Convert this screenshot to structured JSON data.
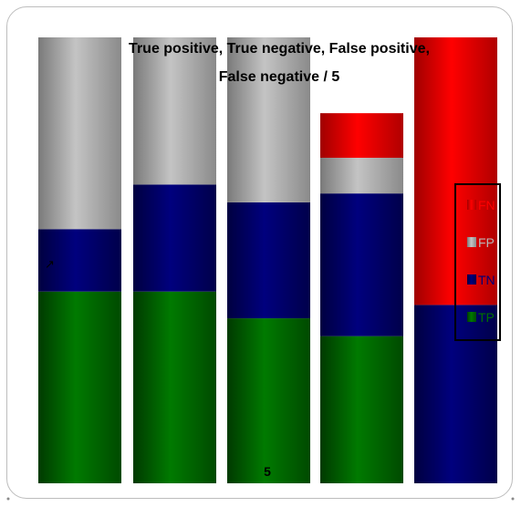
{
  "chart_data": {
    "type": "bar",
    "stacked": true,
    "percent_stacked": true,
    "title_lines": [
      "True positive, True negative, False positive,",
      "False negative / 5"
    ],
    "xlabel": "",
    "ylabel": "",
    "categories": [
      "",
      "",
      "",
      "",
      "5"
    ],
    "series": [
      {
        "name": "TP",
        "color": "#007000",
        "values": [
          0.43,
          0.43,
          0.37,
          0.33,
          0.0
        ]
      },
      {
        "name": "TN",
        "color": "#00007a",
        "values": [
          0.14,
          0.24,
          0.26,
          0.32,
          0.4
        ]
      },
      {
        "name": "FP",
        "color": "#b8b8b8",
        "values": [
          0.43,
          0.33,
          0.37,
          0.08,
          0.0
        ]
      },
      {
        "name": "FN",
        "color": "#ff0000",
        "values": [
          0.0,
          0.0,
          0.0,
          0.1,
          0.6
        ]
      }
    ],
    "ylim": [
      0,
      1
    ],
    "grid": false,
    "legend_position": "right",
    "legend_order": [
      "FN",
      "FP",
      "TN",
      "TP"
    ]
  }
}
